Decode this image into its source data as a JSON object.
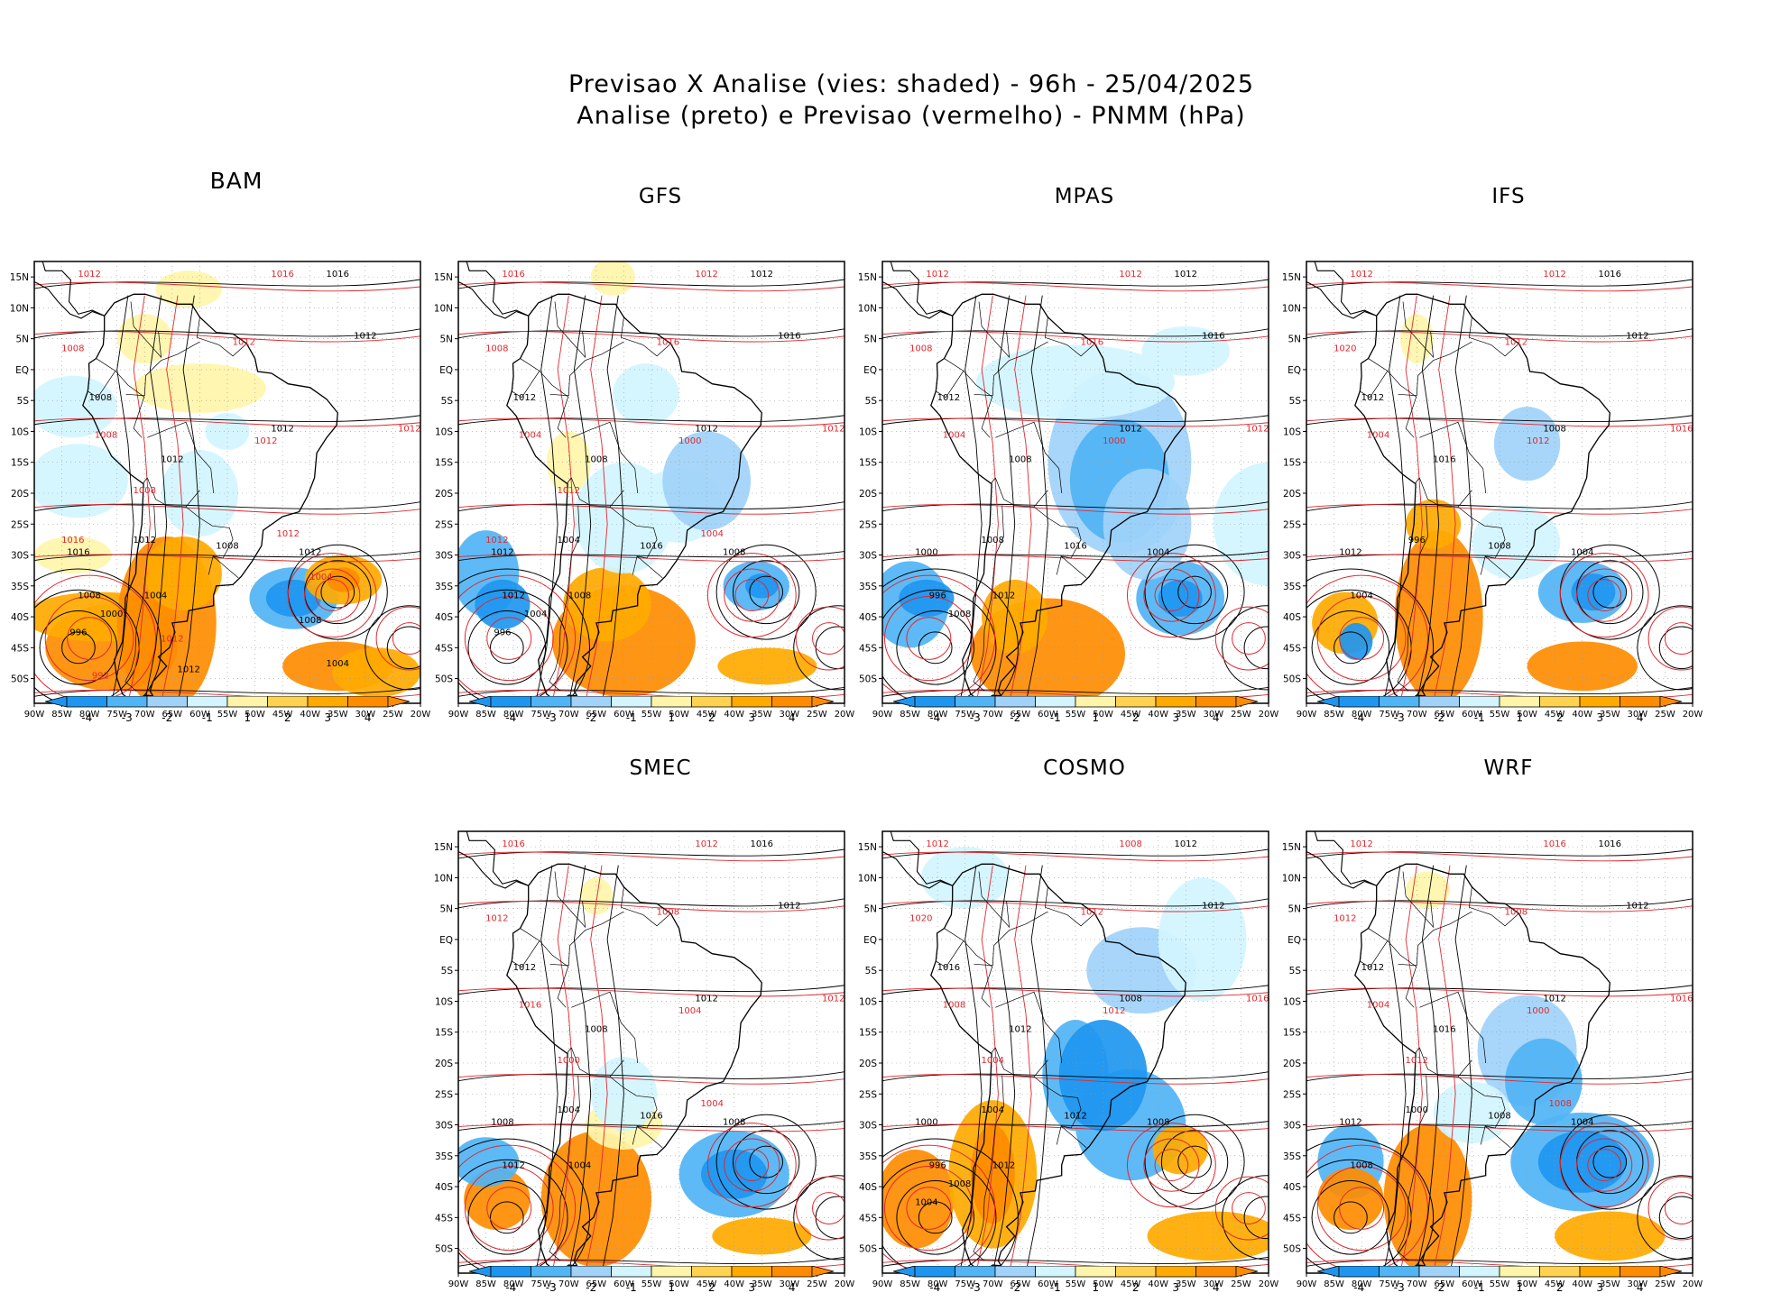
{
  "title": {
    "line1": "Previsao X Analise (vies: shaded) - 96h - 25/04/2025",
    "line2": "Analise (preto) e Previsao (vermelho) - PNMM (hPa)"
  },
  "lat_labels": [
    "15N",
    "10N",
    "5N",
    "EQ",
    "5S",
    "10S",
    "15S",
    "20S",
    "25S",
    "30S",
    "35S",
    "40S",
    "45S",
    "50S"
  ],
  "lon_labels": [
    "90W",
    "85W",
    "80W",
    "75W",
    "70W",
    "65W",
    "60W",
    "55W",
    "50W",
    "45W",
    "40W",
    "35W",
    "30W",
    "25W",
    "20W"
  ],
  "legend": {
    "labels": [
      "-4",
      "-3",
      "-2",
      "-1",
      "1",
      "2",
      "3",
      "4"
    ],
    "colors": [
      "#1e96f0",
      "#50b4f5",
      "#a0d2fa",
      "#d2f5ff",
      "#ffffff",
      "#fff5aa",
      "#ffd250",
      "#ffaa00",
      "#ff8c00"
    ]
  },
  "colors": {
    "analysis_contour": "#000000",
    "forecast_contour": "#e0282e",
    "coast": "#000000",
    "grid": "#999999"
  },
  "panels": [
    {
      "name": "BAM",
      "contour_labels_black": [
        "1016",
        "1012",
        "1012",
        "1012",
        "1008",
        "1008",
        "1012",
        "1012",
        "1016",
        "1008",
        "1004",
        "1000",
        "996",
        "1008",
        "1012",
        "1004"
      ],
      "contour_labels_red": [
        "1012",
        "1016",
        "1008",
        "1012",
        "1012",
        "1008",
        "1012",
        "1008",
        "1012",
        "1016",
        "1004",
        "1012",
        "992"
      ]
    },
    {
      "name": "GFS",
      "contour_labels_black": [
        "1012",
        "1016",
        "1012",
        "1008",
        "1012",
        "1016",
        "1008",
        "1004",
        "1012",
        "1012",
        "1008",
        "1004",
        "996"
      ],
      "contour_labels_red": [
        "1016",
        "1012",
        "1008",
        "1016",
        "1012",
        "1004",
        "1000",
        "1012",
        "1004",
        "1012"
      ]
    },
    {
      "name": "MPAS",
      "contour_labels_black": [
        "1012",
        "1016",
        "1012",
        "1008",
        "1012",
        "1016",
        "1004",
        "1008",
        "1000",
        "996",
        "1012",
        "1008"
      ],
      "contour_labels_red": [
        "1012",
        "1012",
        "1008",
        "1016",
        "1012",
        "1004",
        "1000"
      ]
    },
    {
      "name": "IFS",
      "contour_labels_black": [
        "1016",
        "1012",
        "1008",
        "1016",
        "1012",
        "1008",
        "1004",
        "996",
        "1012",
        "1004"
      ],
      "contour_labels_red": [
        "1012",
        "1012",
        "1020",
        "1012",
        "1016",
        "1004",
        "1012"
      ]
    },
    {
      "name": "SMEC",
      "contour_labels_black": [
        "1016",
        "1012",
        "1012",
        "1008",
        "1012",
        "1016",
        "1008",
        "1004",
        "1008",
        "1012",
        "1004"
      ],
      "contour_labels_red": [
        "1016",
        "1012",
        "1012",
        "1008",
        "1012",
        "1016",
        "1004",
        "1000",
        "1004"
      ]
    },
    {
      "name": "COSMO",
      "contour_labels_black": [
        "1012",
        "1012",
        "1008",
        "1012",
        "1016",
        "1012",
        "1008",
        "1004",
        "1000",
        "996",
        "1012",
        "1008",
        "1004"
      ],
      "contour_labels_red": [
        "1012",
        "1008",
        "1020",
        "1012",
        "1016",
        "1008",
        "1012",
        "1004"
      ]
    },
    {
      "name": "WRF",
      "contour_labels_black": [
        "1016",
        "1012",
        "1012",
        "1016",
        "1012",
        "1008",
        "1004",
        "1000",
        "1012",
        "1008"
      ],
      "contour_labels_red": [
        "1012",
        "1016",
        "1012",
        "1008",
        "1016",
        "1004",
        "1000",
        "1012",
        "1008"
      ]
    }
  ]
}
